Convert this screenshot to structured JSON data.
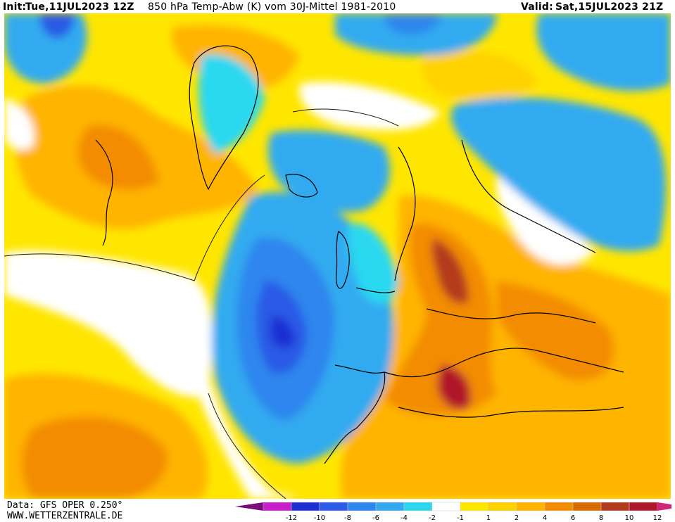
{
  "header": {
    "init_label": "Init:",
    "init_value": "Tue,11JUL2023 12Z",
    "title": "850 hPa Temp-Abw (K) vom 30J-Mittel 1981-2010",
    "valid_label": "Valid:",
    "valid_value": "Sat,15JUL2023 21Z"
  },
  "footer": {
    "data_source": "Data: GFS OPER 0.250°",
    "website": "WWW.WETTERZENTRALE.DE"
  },
  "legend": {
    "ticks": [
      "-12",
      "-10",
      "-8",
      "-6",
      "-4",
      "-2",
      "-1",
      "1",
      "2",
      "4",
      "6",
      "8",
      "10",
      "12"
    ],
    "colors": [
      "#7a0f7a",
      "#c81ec8",
      "#1e2fd2",
      "#2a5ae6",
      "#2e86ee",
      "#33aaf0",
      "#2bd8f0",
      "#ffffff",
      "#ffe600",
      "#ffd200",
      "#ffb400",
      "#f38c00",
      "#d76a00",
      "#b43a1c",
      "#b0182c",
      "#d02878"
    ]
  }
}
